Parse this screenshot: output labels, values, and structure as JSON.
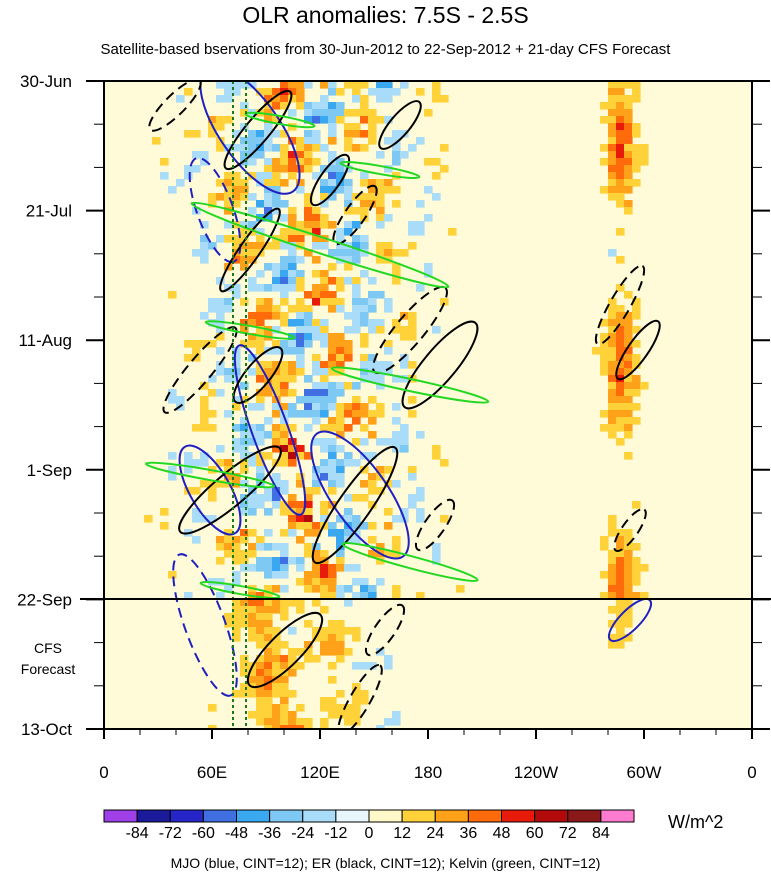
{
  "chart_data": {
    "type": "heatmap",
    "title": "OLR anomalies: 7.5S - 2.5S",
    "subtitle": "Satellite-based bservations from 30-Jun-2012 to 22-Sep-2012 + 21-day CFS Forecast",
    "y_ticks": [
      "30-Jun",
      "21-Jul",
      "11-Aug",
      "1-Sep",
      "22-Sep",
      "13-Oct"
    ],
    "x_ticks": [
      "0",
      "60E",
      "120E",
      "180",
      "120W",
      "60W",
      "0"
    ],
    "forecast_label": [
      "CFS",
      "Forecast"
    ],
    "colorbar": {
      "levels": [
        "-84",
        "-72",
        "-60",
        "-48",
        "-36",
        "-24",
        "-12",
        "0",
        "12",
        "24",
        "36",
        "48",
        "60",
        "72",
        "84"
      ],
      "colors": [
        "#9f3fe8",
        "#1a1a9a",
        "#2525c8",
        "#3f6fe0",
        "#3aa8f0",
        "#7ec8f4",
        "#a9dcf8",
        "#e6f6fb",
        "#fff8c8",
        "#ffd23a",
        "#ffa21a",
        "#ff6a0a",
        "#e81a0a",
        "#b20a0a",
        "#8a1a1a",
        "#ff7bd0"
      ],
      "units": "W/m^2"
    },
    "footnote": "MJO (blue, CINT=12); ER (black, CINT=12); Kelvin (green, CINT=12)",
    "longitude_range": [
      0,
      360
    ],
    "time_range": [
      "30-Jun-2012",
      "13-Oct-2012"
    ],
    "forecast_start": "22-Sep"
  }
}
